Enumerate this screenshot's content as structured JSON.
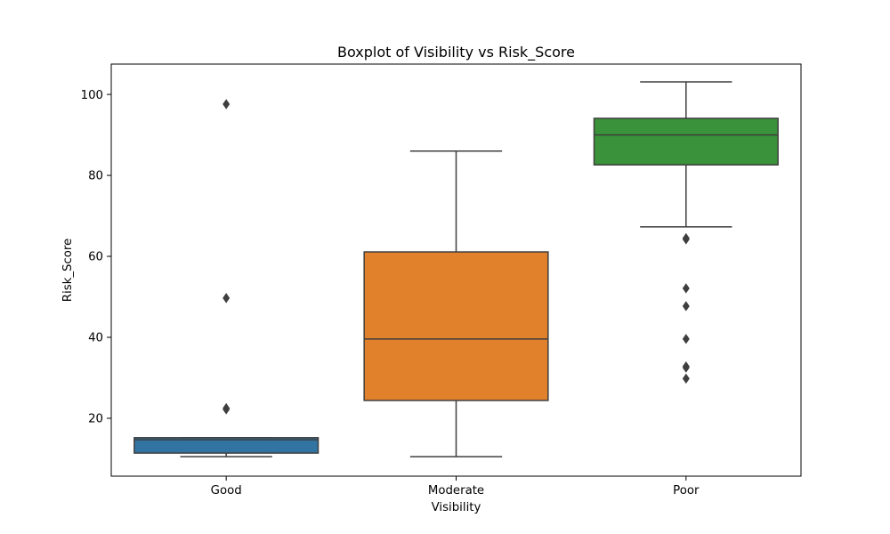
{
  "chart_data": {
    "type": "box",
    "title": "Boxplot of Visibility vs Risk_Score",
    "xlabel": "Visibility",
    "ylabel": "Risk_Score",
    "categories": [
      "Good",
      "Moderate",
      "Poor"
    ],
    "yticks": [
      20,
      40,
      60,
      80,
      100
    ],
    "ylim": [
      5.7,
      107.5
    ],
    "grid": false,
    "boxes": [
      {
        "color": "#3274a1",
        "whisker_low": 10.5,
        "q1": 11.4,
        "median": 14.7,
        "q3": 15.2,
        "whisker_high": 15.2,
        "outliers": [
          22.2,
          22.5,
          49.7,
          97.6
        ]
      },
      {
        "color": "#e1812c",
        "whisker_low": 10.5,
        "q1": 24.4,
        "median": 39.6,
        "q3": 61.1,
        "whisker_high": 86.0,
        "outliers": []
      },
      {
        "color": "#3a923a",
        "whisker_low": 67.3,
        "q1": 82.6,
        "median": 90.0,
        "q3": 94.1,
        "whisker_high": 103.1,
        "outliers": [
          64.2,
          64.5,
          52.1,
          47.7,
          39.6,
          32.5,
          32.8,
          29.8
        ]
      }
    ]
  },
  "style": {
    "line_color": "#3f3f3f",
    "axis_color": "#000000",
    "background": "#ffffff"
  }
}
